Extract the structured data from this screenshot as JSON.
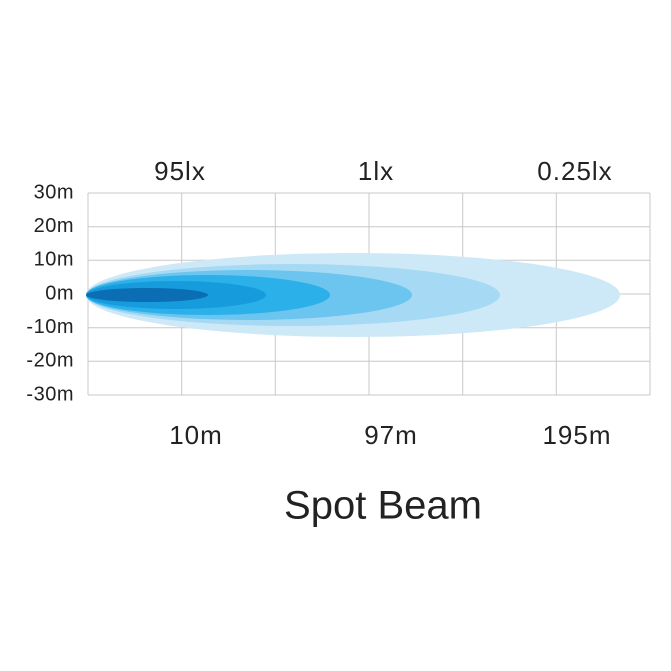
{
  "title": "Spot Beam",
  "lux_labels": [
    "95lx",
    "1lx",
    "0.25lx"
  ],
  "distance_labels": [
    "10m",
    "97m",
    "195m"
  ],
  "y_labels": [
    "30m",
    "20m",
    "10m",
    "0m",
    "-10m",
    "-20m",
    "-30m"
  ]
}
